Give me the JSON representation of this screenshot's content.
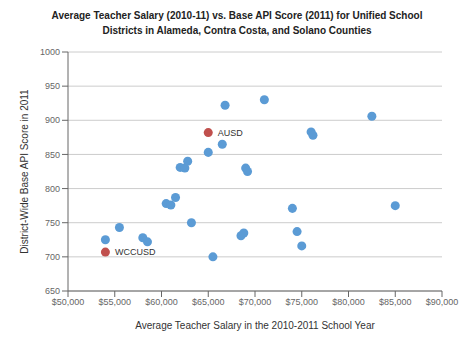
{
  "chart_data": {
    "type": "scatter",
    "title": "Average Teacher Salary (2010-11) vs. Base API Score (2011) for Unified School\nDistricts in Alameda, Contra Costa, and Solano Counties",
    "xlabel": "Average Teacher Salary in the 2010-2011 School Year",
    "ylabel": "District-Wide Base API Score in 2011",
    "xlim": [
      50000,
      90000
    ],
    "ylim": [
      650,
      1000
    ],
    "xticks": [
      {
        "value": 50000,
        "label": "$50,000"
      },
      {
        "value": 55000,
        "label": "$55,000"
      },
      {
        "value": 60000,
        "label": "$60,000"
      },
      {
        "value": 65000,
        "label": "$65,000"
      },
      {
        "value": 70000,
        "label": "$70,000"
      },
      {
        "value": 75000,
        "label": "$75,000"
      },
      {
        "value": 80000,
        "label": "$80,000"
      },
      {
        "value": 85000,
        "label": "$85,000"
      },
      {
        "value": 90000,
        "label": "$90,000"
      }
    ],
    "yticks": [
      650,
      700,
      750,
      800,
      850,
      900,
      950,
      1000
    ],
    "grid": "y",
    "series": [
      {
        "color": "#5b9bd5",
        "x": [
          54000,
          55500,
          58000,
          58500,
          60500,
          61000,
          61500,
          62000,
          62500,
          62800,
          63200,
          65000,
          65500,
          66500,
          66800,
          68500,
          68800,
          69000,
          69200,
          71000,
          74000,
          74500,
          75000,
          76000,
          76200,
          82500,
          85000
        ],
        "values": [
          725,
          743,
          728,
          722,
          778,
          776,
          787,
          831,
          830,
          840,
          750,
          853,
          700,
          865,
          922,
          731,
          735,
          830,
          825,
          930,
          771,
          737,
          716,
          883,
          878,
          906,
          775
        ]
      },
      {
        "color": "#c0504d",
        "x": [
          65000,
          54000
        ],
        "values": [
          882,
          707
        ],
        "labels": [
          "AUSD",
          "WCCUSD"
        ]
      }
    ]
  }
}
